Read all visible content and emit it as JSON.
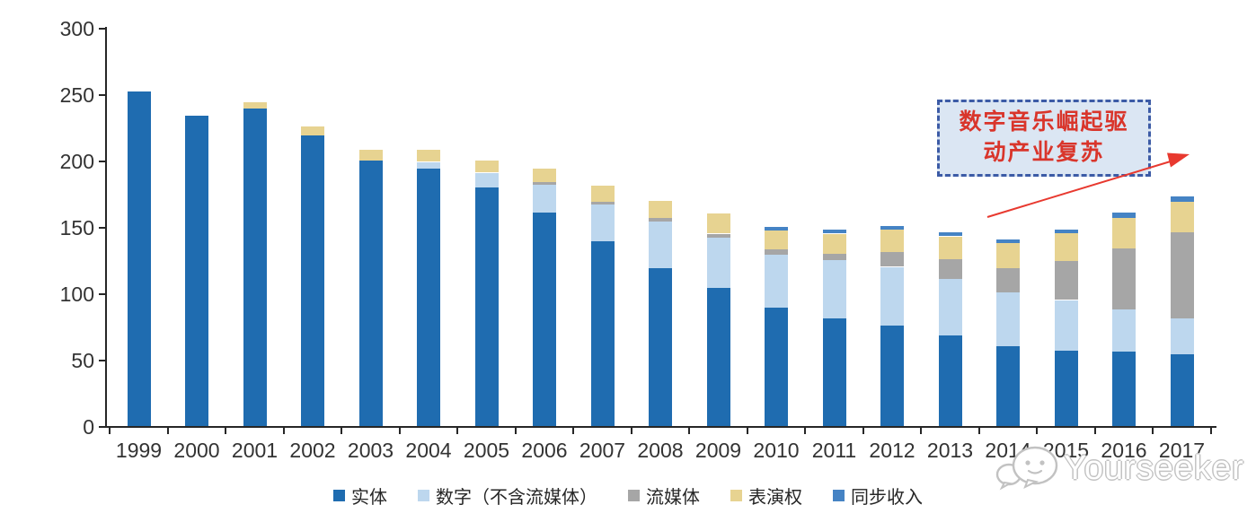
{
  "chart_data": {
    "type": "bar",
    "stacked": true,
    "categories": [
      "1999",
      "2000",
      "2001",
      "2002",
      "2003",
      "2004",
      "2005",
      "2006",
      "2007",
      "2008",
      "2009",
      "2010",
      "2011",
      "2012",
      "2013",
      "2014",
      "2015",
      "2016",
      "2017"
    ],
    "series": [
      {
        "name": "实体",
        "color": "#1f6cb0",
        "values": [
          252,
          234,
          239,
          219,
          200,
          194,
          180,
          161,
          139,
          119,
          104,
          89,
          81,
          76,
          68,
          60,
          57,
          56,
          54
        ]
      },
      {
        "name": "数字（不含流媒体）",
        "color": "#bdd7ee",
        "values": [
          0,
          0,
          0,
          0,
          0,
          5,
          11,
          21,
          28,
          35,
          38,
          40,
          44,
          44,
          43,
          41,
          38,
          32,
          27
        ]
      },
      {
        "name": "流媒体",
        "color": "#a6a6a6",
        "values": [
          0,
          0,
          0,
          0,
          0,
          0,
          0,
          2,
          2,
          3,
          3,
          4,
          5,
          11,
          15,
          18,
          29,
          46,
          65
        ]
      },
      {
        "name": "表演权",
        "color": "#e7d391",
        "values": [
          0,
          0,
          5,
          7,
          8,
          9,
          9,
          10,
          12,
          13,
          15,
          14,
          15,
          17,
          17,
          19,
          21,
          23,
          23
        ]
      },
      {
        "name": "同步收入",
        "color": "#4583c4",
        "values": [
          0,
          0,
          0,
          0,
          0,
          0,
          0,
          0,
          0,
          0,
          0,
          3,
          3,
          3,
          3,
          3,
          3,
          4,
          4
        ]
      }
    ],
    "totals": [
      252,
      234,
      244,
      226,
      208,
      208,
      200,
      194,
      181,
      170,
      160,
      150,
      148,
      151,
      146,
      141,
      148,
      161,
      173
    ],
    "ylim": [
      0,
      300
    ],
    "yticks": [
      "0",
      "50",
      "100",
      "150",
      "200",
      "250",
      "300"
    ],
    "grid": false,
    "legend_position": "bottom"
  },
  "annotation": {
    "line1": "数字音乐崛起驱",
    "line2": "动产业复苏",
    "text_color": "#d9352b",
    "box_fill": "#dbe6f3",
    "box_border_color": "#3c5ba6",
    "arrow_color": "#e8392f"
  },
  "watermark": {
    "text": "Yourseeker"
  }
}
